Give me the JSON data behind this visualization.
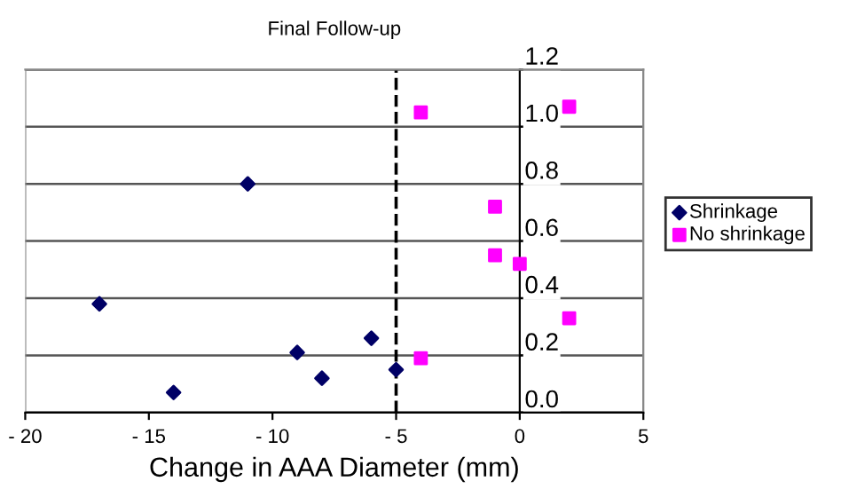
{
  "chart_data": {
    "type": "scatter",
    "title": "Final Follow-up",
    "xlabel": "Change in AAA Diameter (mm)",
    "series": [
      {
        "name": "Shrinkage",
        "color": "#000066",
        "marker": "diamond",
        "x": [
          -17,
          -14,
          -11,
          -9,
          -8,
          -6,
          -5
        ],
        "values": [
          0.38,
          0.07,
          0.8,
          0.21,
          0.12,
          0.26,
          0.15
        ]
      },
      {
        "name": "No shrinkage",
        "color": "#ff00ff",
        "marker": "square",
        "x": [
          -4,
          2,
          -1,
          -1,
          0,
          2,
          -4
        ],
        "values": [
          1.05,
          1.07,
          0.72,
          0.55,
          0.52,
          0.33,
          0.19
        ]
      }
    ],
    "xlim": [
      -20,
      5
    ],
    "ylim": [
      0,
      1.2
    ],
    "xticks": [
      {
        "value": -20,
        "label": "- 20"
      },
      {
        "value": -15,
        "label": "- 15"
      },
      {
        "value": -10,
        "label": "- 10"
      },
      {
        "value": -5,
        "label": "- 5"
      },
      0,
      5
    ],
    "yticks": [
      {
        "value": 0,
        "label": "0.0"
      },
      {
        "value": 0.2,
        "label": "0.2"
      },
      {
        "value": 0.4,
        "label": "0.4"
      },
      {
        "value": 0.6,
        "label": "0.6"
      },
      {
        "value": 0.8,
        "label": "0.8"
      },
      {
        "value": 1.0,
        "label": "1.0"
      },
      {
        "value": 1.2,
        "label": "1.2"
      }
    ],
    "ref_lines": [
      {
        "axis": "x",
        "value": -5,
        "color": "#000000",
        "line_style": "dashed"
      }
    ],
    "grid": "y",
    "legend": "right"
  }
}
